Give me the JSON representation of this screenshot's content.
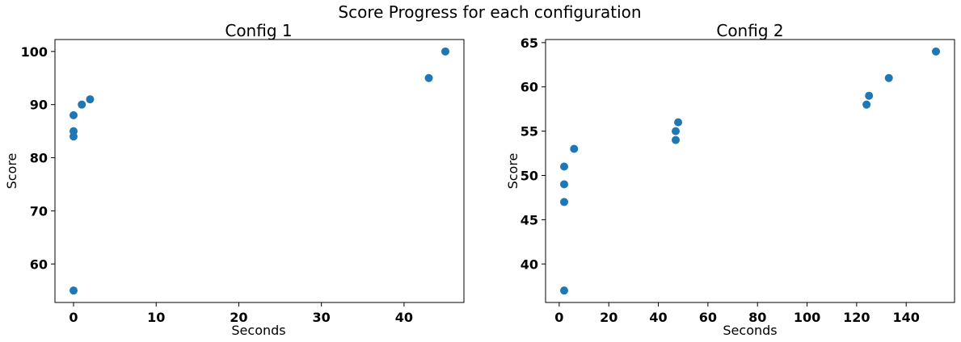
{
  "suptitle": "Score Progress for each configuration",
  "chart_data": [
    {
      "type": "scatter",
      "title": "Config 1",
      "xlabel": "Seconds",
      "ylabel": "Score",
      "xlim": [
        -2.25,
        47.25
      ],
      "ylim": [
        52.75,
        102.25
      ],
      "xticks": [
        0,
        10,
        20,
        30,
        40
      ],
      "yticks": [
        60,
        70,
        80,
        90,
        100
      ],
      "grid": false,
      "color": "#1f77b4",
      "points": [
        {
          "x": 0,
          "y": 55
        },
        {
          "x": 0,
          "y": 84
        },
        {
          "x": 0,
          "y": 85
        },
        {
          "x": 0,
          "y": 88
        },
        {
          "x": 1,
          "y": 90
        },
        {
          "x": 2,
          "y": 91
        },
        {
          "x": 43,
          "y": 95
        },
        {
          "x": 45,
          "y": 100
        }
      ]
    },
    {
      "type": "scatter",
      "title": "Config 2",
      "xlabel": "Seconds",
      "ylabel": "Score",
      "xlim": [
        -5.5,
        159.5
      ],
      "ylim": [
        35.65,
        65.35
      ],
      "xticks": [
        0,
        20,
        40,
        60,
        80,
        100,
        120,
        140
      ],
      "yticks": [
        40,
        45,
        50,
        55,
        60,
        65
      ],
      "grid": false,
      "color": "#1f77b4",
      "points": [
        {
          "x": 2,
          "y": 37
        },
        {
          "x": 2,
          "y": 47
        },
        {
          "x": 2,
          "y": 49
        },
        {
          "x": 2,
          "y": 51
        },
        {
          "x": 6,
          "y": 53
        },
        {
          "x": 47,
          "y": 54
        },
        {
          "x": 47,
          "y": 55
        },
        {
          "x": 48,
          "y": 56
        },
        {
          "x": 124,
          "y": 58
        },
        {
          "x": 125,
          "y": 59
        },
        {
          "x": 133,
          "y": 61
        },
        {
          "x": 152,
          "y": 64
        }
      ]
    }
  ]
}
